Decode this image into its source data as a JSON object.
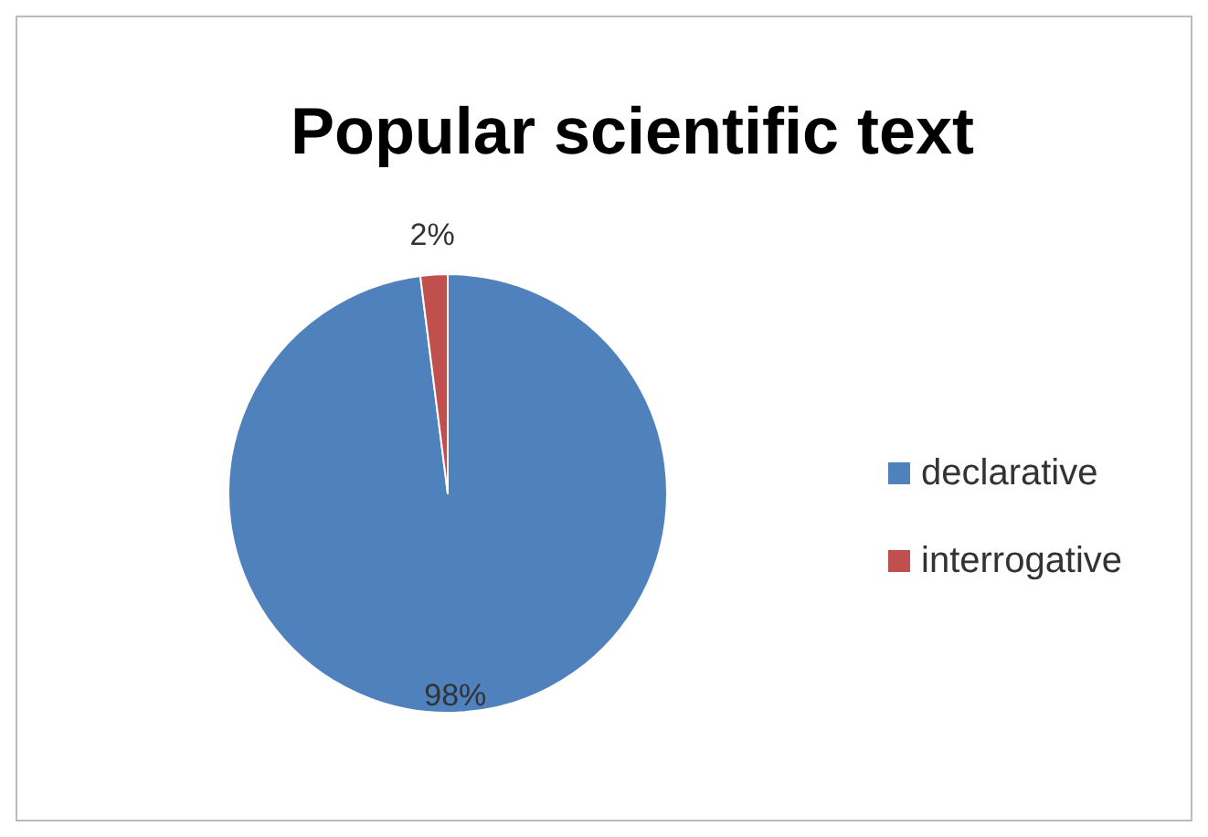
{
  "chart_data": {
    "type": "pie",
    "title": "Popular scientific text",
    "categories": [
      "declarative",
      "interrogative"
    ],
    "values": [
      98,
      2
    ],
    "colors": [
      "#4f81bd",
      "#c0504d"
    ],
    "value_labels": [
      "98%",
      "2%"
    ],
    "legend": "right"
  }
}
